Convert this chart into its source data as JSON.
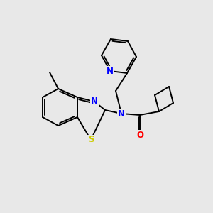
{
  "background_color": "#e8e8e8",
  "bond_color": "#000000",
  "atom_colors": {
    "N": "#0000ff",
    "S": "#cccc00",
    "O": "#ff0000",
    "C": "#000000"
  },
  "figsize": [
    3.0,
    3.0
  ],
  "dpi": 100
}
